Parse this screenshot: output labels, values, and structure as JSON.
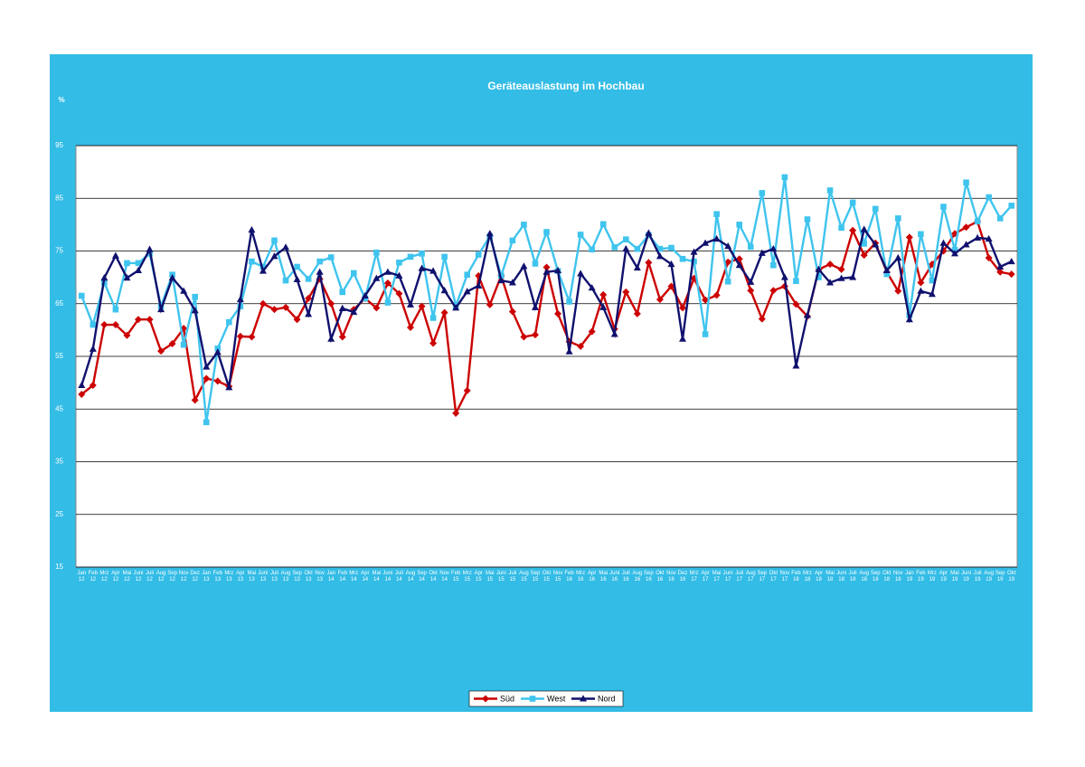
{
  "chart_data": {
    "type": "line",
    "title": "Geräteauslastung im Hochbau",
    "y_label": "%",
    "categories": [
      "Jan 12",
      "Feb 12",
      "Mrz 12",
      "Apr 12",
      "Mai 12",
      "Juni 12",
      "Juli 12",
      "Aug 12",
      "Sep 12",
      "Nov 12",
      "Dez 12",
      "Jan 13",
      "Feb 13",
      "Mrz 13",
      "Apr 13",
      "Mai 13",
      "Juni 13",
      "Juli 13",
      "Aug 13",
      "Sep 13",
      "Okt 13",
      "Nov 13",
      "Jan 14",
      "Feb 14",
      "Mrz 14",
      "Apr 14",
      "Mai 14",
      "Juni 14",
      "Juli 14",
      "Aug 14",
      "Sep 14",
      "Okt 14",
      "Nov 14",
      "Feb 15",
      "Mrz 15",
      "Apr 15",
      "Mai 15",
      "Juni 15",
      "Juli 15",
      "Aug 15",
      "Sep 15",
      "Okt 15",
      "Nov 15",
      "Feb 16",
      "Mrz 16",
      "Apr 16",
      "Mai 16",
      "Juni 16",
      "Juli 16",
      "Aug 16",
      "Sep 16",
      "Okt 16",
      "Nov 16",
      "Dez 16",
      "Mrz 17",
      "Apr 17",
      "Mai 17",
      "Juni 17",
      "Juli 17",
      "Aug 17",
      "Sep 17",
      "Okt 17",
      "Nov 17",
      "Feb 18",
      "Mrz 18",
      "Apr 18",
      "Mai 18",
      "Juni 18",
      "Juli 18",
      "Aug 18",
      "Sep 18",
      "Okt 18",
      "Nov 18",
      "Jan 19",
      "Feb 19",
      "Mrz 19",
      "Apr 19",
      "Mai 19",
      "Juni 19",
      "Juli 19",
      "Aug 19",
      "Sep 19",
      "Okt 19"
    ],
    "series": [
      {
        "name": "Süd",
        "color": "#cc0000",
        "marker": "diamond",
        "values": [
          47.8,
          49.5,
          61,
          61,
          59,
          62,
          62,
          56,
          57.4,
          60.3,
          46.7,
          50.8,
          50.3,
          49.3,
          58.8,
          58.7,
          65,
          63.9,
          64.3,
          62,
          66,
          69.7,
          65,
          58.7,
          63.9,
          66,
          64.2,
          68.9,
          66.9,
          60.5,
          64.5,
          57.5,
          63.3,
          44.2,
          48.5,
          70.3,
          64.8,
          70.3,
          63.5,
          58.7,
          59.1,
          71.9,
          63.1,
          57.8,
          56.9,
          59.7,
          66.7,
          60.2,
          67.2,
          63.1,
          72.8,
          65.8,
          68.3,
          64.2,
          69.8,
          65.7,
          66.6,
          72.9,
          73.5,
          67.5,
          62.1,
          67.5,
          68.3,
          64.9,
          62.6,
          71.5,
          72.5,
          71.5,
          78.9,
          74.2,
          76.5,
          71,
          67.4,
          77.6,
          69,
          72.5,
          75,
          78.3,
          79.5,
          80.6,
          73.7,
          71,
          70.6
        ]
      },
      {
        "name": "West",
        "color": "#3fc4ee",
        "marker": "square",
        "values": [
          66.5,
          61,
          69,
          63.9,
          72.7,
          72.7,
          74.5,
          64.5,
          70.5,
          57.2,
          66.3,
          42.5,
          56.5,
          61.5,
          64.5,
          73,
          72,
          77,
          69.4,
          72,
          69.7,
          73,
          73.8,
          67.2,
          70.8,
          66,
          74.7,
          65.2,
          72.8,
          73.9,
          74.5,
          62.3,
          73.9,
          64.6,
          70.5,
          74.3,
          77.8,
          70.3,
          77,
          80,
          72.6,
          78.6,
          71.2,
          65.4,
          78.1,
          75.3,
          80.1,
          75.7,
          77.2,
          75.4,
          78,
          75.4,
          75.6,
          73.5,
          73,
          59.2,
          82,
          69.2,
          80,
          75.8,
          86,
          72.3,
          89,
          69.3,
          81,
          70,
          86.5,
          79.4,
          84.2,
          76.4,
          83,
          70.6,
          81.2,
          62.8,
          78.2,
          69.4,
          83.4,
          75.2,
          88,
          80.6,
          85.2,
          81.2,
          83.6
        ]
      },
      {
        "name": "Nord",
        "color": "#10106e",
        "marker": "triangle",
        "values": [
          49.5,
          56.4,
          69.9,
          74.1,
          69.9,
          71.3,
          75.3,
          63.9,
          69.9,
          67.4,
          63.7,
          53,
          55.8,
          49.1,
          65.8,
          79,
          71.2,
          74,
          75.7,
          69.6,
          63,
          71,
          58.3,
          64.1,
          63.4,
          66.5,
          69.8,
          71,
          70.3,
          64.8,
          71.7,
          71.2,
          67.5,
          64.2,
          67.3,
          68.4,
          78.3,
          69.4,
          69,
          72.1,
          64.3,
          71,
          71.3,
          55.9,
          70.7,
          68,
          64.3,
          59.2,
          75.4,
          71.8,
          78.4,
          74,
          72.5,
          58.3,
          74.8,
          76.5,
          77.3,
          75.9,
          72.3,
          69.1,
          74.6,
          75.4,
          70,
          53.2,
          62.8,
          71.5,
          69,
          69.8,
          70,
          79.1,
          76.2,
          71.3,
          73.7,
          62,
          67.4,
          66.8,
          76.5,
          74.5,
          76.2,
          77.5,
          77.3,
          72,
          73
        ]
      }
    ],
    "ylim": [
      15,
      95
    ],
    "yticks": [
      15,
      25,
      35,
      45,
      55,
      65,
      75,
      85,
      95
    ],
    "grid": true,
    "legend": "bottom"
  }
}
